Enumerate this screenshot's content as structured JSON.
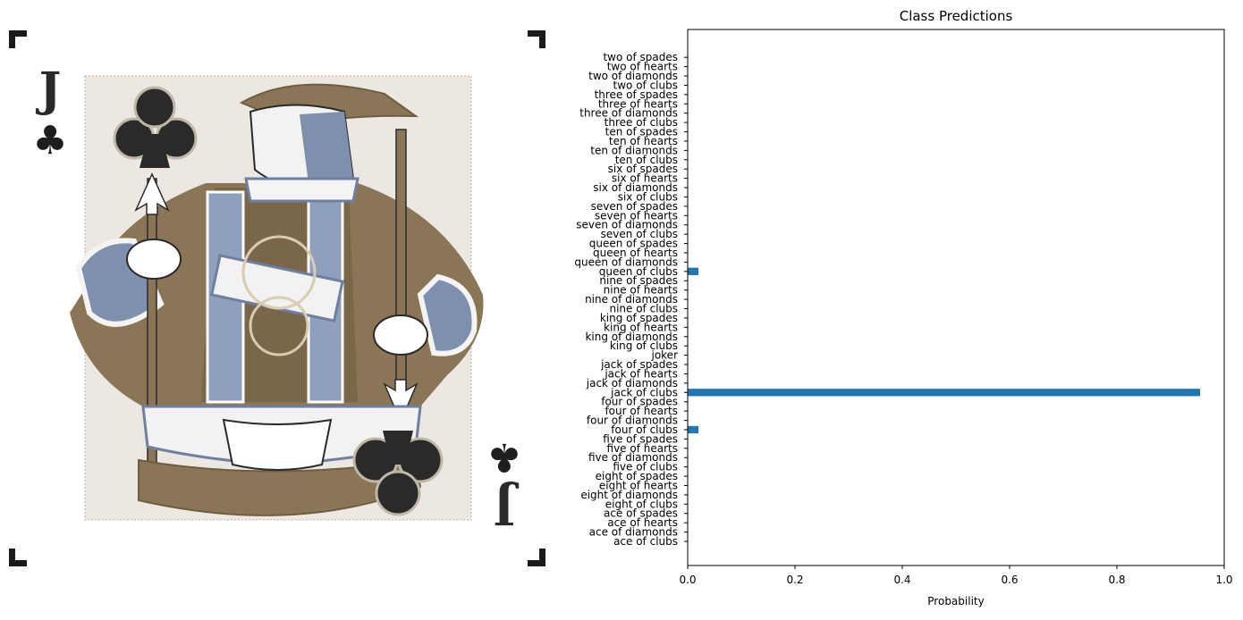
{
  "chart_data": {
    "type": "bar",
    "orientation": "horizontal",
    "title": "Class Predictions",
    "xlabel": "Probability",
    "ylabel": "",
    "xlim": [
      0.0,
      1.0
    ],
    "xticks": [
      "0.0",
      "0.2",
      "0.4",
      "0.6",
      "0.8",
      "1.0"
    ],
    "xtick_values": [
      0.0,
      0.2,
      0.4,
      0.6,
      0.8,
      1.0
    ],
    "grid": false,
    "legend": "none",
    "bar_color": "#1f77b4",
    "categories": [
      "ace of clubs",
      "ace of diamonds",
      "ace of hearts",
      "ace of spades",
      "eight of clubs",
      "eight of diamonds",
      "eight of hearts",
      "eight of spades",
      "five of clubs",
      "five of diamonds",
      "five of hearts",
      "five of spades",
      "four of clubs",
      "four of diamonds",
      "four of hearts",
      "four of spades",
      "jack of clubs",
      "jack of diamonds",
      "jack of hearts",
      "jack of spades",
      "joker",
      "king of clubs",
      "king of diamonds",
      "king of hearts",
      "king of spades",
      "nine of clubs",
      "nine of diamonds",
      "nine of hearts",
      "nine of spades",
      "queen of clubs",
      "queen of diamonds",
      "queen of hearts",
      "queen of spades",
      "seven of clubs",
      "seven of diamonds",
      "seven of hearts",
      "seven of spades",
      "six of clubs",
      "six of diamonds",
      "six of hearts",
      "six of spades",
      "ten of clubs",
      "ten of diamonds",
      "ten of hearts",
      "ten of spades",
      "three of clubs",
      "three of diamonds",
      "three of hearts",
      "three of spades",
      "two of clubs",
      "two of diamonds",
      "two of hearts",
      "two of spades"
    ],
    "values": [
      0,
      0,
      0,
      0,
      0,
      0,
      0,
      0,
      0,
      0,
      0,
      0,
      0.02,
      0,
      0,
      0,
      0.955,
      0,
      0,
      0,
      0,
      0,
      0,
      0,
      0,
      0,
      0,
      0,
      0,
      0.02,
      0,
      0,
      0,
      0,
      0,
      0,
      0,
      0,
      0,
      0,
      0,
      0,
      0,
      0,
      0,
      0,
      0,
      0,
      0,
      0,
      0,
      0,
      0
    ]
  },
  "image_panel": {
    "subject": "jack of clubs playing card",
    "rank_glyph": "J",
    "suit_glyph": "♣",
    "colors": {
      "card_bg": "#ece8e1",
      "robe": "#8a7656",
      "robe_dark": "#6f5d40",
      "sleeve": "#7f8fae",
      "ink": "#1e1e1e",
      "trim": "#f4f4f4"
    }
  }
}
